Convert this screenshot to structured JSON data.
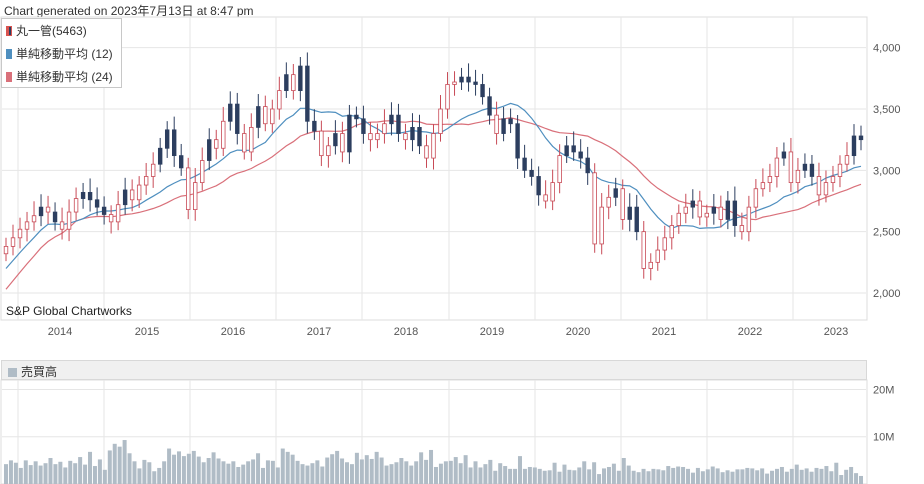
{
  "header": {
    "generated": "Chart generated on 2023年7月13日 at 8:47 pm"
  },
  "legend": {
    "items": [
      {
        "label": "丸一管(5463)",
        "color": "#2c3e5f",
        "border": "#d9534f"
      },
      {
        "label": "単純移動平均 (12)",
        "color": "#4f8fbf"
      },
      {
        "label": "単純移動平均 (24)",
        "color": "#d9707a"
      }
    ]
  },
  "watermark": "S&P Global Chartworks",
  "volume_panel": {
    "label": "売買高"
  },
  "colors": {
    "up": "#ffffff",
    "up_border": "#c84a56",
    "down": "#2c3e5f",
    "sma12": "#4f8fbf",
    "sma24": "#d9707a",
    "volume": "#b0bcc6",
    "grid": "#e6e6e6"
  },
  "chart_data": [
    {
      "type": "candlestick",
      "title": "丸一管(5463)",
      "x_tick_labels": [
        "2014",
        "2015",
        "2016",
        "2017",
        "2018",
        "2019",
        "2020",
        "2021",
        "2022",
        "2023"
      ],
      "y_tick_labels": [
        "2,000",
        "2,500",
        "3,000",
        "3,500",
        "4,000"
      ],
      "ylim": [
        1780,
        4250
      ],
      "grid": true,
      "series": [
        {
          "name": "丸一管(5463)",
          "kind": "candles",
          "close": [
            2380,
            2450,
            2520,
            2580,
            2630,
            2700,
            2660,
            2580,
            2520,
            2660,
            2770,
            2820,
            2760,
            2700,
            2640,
            2580,
            2720,
            2840,
            2760,
            2880,
            2950,
            3050,
            3180,
            3330,
            3120,
            3020,
            2680,
            2900,
            3080,
            3250,
            3180,
            3400,
            3540,
            3300,
            3150,
            3350,
            3520,
            3380,
            3500,
            3650,
            3780,
            3650,
            3850,
            3400,
            3320,
            3120,
            3200,
            3300,
            3150,
            3450,
            3420,
            3300,
            3250,
            3300,
            3380,
            3450,
            3300,
            3250,
            3350,
            3200,
            3100,
            3300,
            3500,
            3700,
            3720,
            3760,
            3720,
            3700,
            3600,
            3450,
            3300,
            3420,
            3380,
            3100,
            3000,
            2950,
            2800,
            2750,
            2900,
            3120,
            3200,
            3150,
            3100,
            2980,
            2400,
            2700,
            2780,
            2850,
            2600,
            2700,
            2500,
            2200,
            2250,
            2350,
            2450,
            2550,
            2650,
            2700,
            2750,
            2620,
            2650,
            2700,
            2600,
            2750,
            2550,
            2500,
            2700,
            2850,
            2900,
            2950,
            3100,
            3150,
            2900,
            3000,
            3050,
            2950,
            2800,
            2900,
            2950,
            3050,
            3120,
            3280,
            3250
          ],
          "up": [
            true,
            true,
            true,
            true,
            true,
            false,
            true,
            false,
            true,
            true,
            true,
            false,
            false,
            false,
            false,
            true,
            true,
            false,
            true,
            true,
            true,
            true,
            false,
            false,
            false,
            false,
            true,
            true,
            true,
            false,
            true,
            true,
            false,
            false,
            true,
            true,
            false,
            true,
            true,
            true,
            false,
            true,
            false,
            false,
            false,
            true,
            true,
            false,
            true,
            false,
            false,
            false,
            true,
            true,
            true,
            false,
            false,
            true,
            false,
            false,
            true,
            true,
            true,
            true,
            true,
            false,
            false,
            false,
            false,
            false,
            true,
            false,
            false,
            false,
            false,
            false,
            false,
            true,
            true,
            true,
            false,
            false,
            false,
            false,
            true,
            true,
            true,
            false,
            true,
            false,
            false,
            true,
            true,
            true,
            true,
            true,
            true,
            true,
            false,
            true,
            true,
            false,
            true,
            false,
            false,
            true,
            true,
            true,
            true,
            true,
            true,
            false,
            true,
            true,
            false,
            false,
            true,
            true,
            true,
            true,
            true,
            false,
            false
          ]
        },
        {
          "name": "単純移動平均 (12)",
          "kind": "line"
        },
        {
          "name": "単純移動平均 (24)",
          "kind": "line"
        }
      ]
    },
    {
      "type": "bar",
      "title": "売買高",
      "y_tick_labels": [
        "10M",
        "20M"
      ],
      "ylim": [
        0,
        22000000
      ],
      "values": [
        4.2,
        5.0,
        4.5,
        3.4,
        5.0,
        4.0,
        4.8,
        3.9,
        4.4,
        5.5,
        4.2,
        4.7,
        3.5,
        4.9,
        4.4,
        5.7,
        4.1,
        6.8,
        3.8,
        5.2,
        3.0,
        7.1,
        8.5,
        7.9,
        9.3,
        6.5,
        4.8,
        3.3,
        5.1,
        4.6,
        2.7,
        3.4,
        4.8,
        7.5,
        6.2,
        6.9,
        5.9,
        6.4,
        7.0,
        5.8,
        4.6,
        5.5,
        6.7,
        5.4,
        4.8,
        4.3,
        4.8,
        3.6,
        4.1,
        4.8,
        5.2,
        6.5,
        3.4,
        5.0,
        4.9,
        3.5,
        7.5,
        6.8,
        6.2,
        4.9,
        4.2,
        3.9,
        4.4,
        5.0,
        3.7,
        5.6,
        6.3,
        7.0,
        5.4,
        4.6,
        4.2,
        6.6,
        5.2,
        6.1,
        5.3,
        6.8,
        5.6,
        3.9,
        4.2,
        4.6,
        5.5,
        4.8,
        3.9,
        4.8,
        6.7,
        5.1,
        7.2,
        3.6,
        4.3,
        4.8,
        4.9,
        5.7,
        4.4,
        6.1,
        3.5,
        4.8,
        3.5,
        4.2,
        5.1,
        2.8,
        4.4,
        3.8,
        3.2,
        3.2,
        5.9,
        3.2,
        3.6,
        3.5,
        3.2,
        2.8,
        2.9,
        4.5,
        2.6,
        4.1,
        3.0,
        2.9,
        3.5,
        4.8,
        3.1,
        4.6,
        2.1,
        3.3,
        3.6,
        4.3,
        2.8,
        5.5,
        3.9,
        2.8,
        2.5,
        3.2,
        2.7,
        3.2,
        3.1,
        2.9,
        3.8,
        3.4,
        3.7,
        3.6,
        3.2,
        2.4,
        3.4,
        2.7,
        3.1,
        3.7,
        3.3,
        2.5,
        2.9,
        2.6,
        3.1,
        3.1,
        3.4,
        3.3,
        2.9,
        3.3,
        2.2,
        2.8,
        3.2,
        3.6,
        2.6,
        3.2,
        4.1,
        3.0,
        3.3,
        2.6,
        3.4,
        3.2,
        3.8,
        2.7,
        4.5,
        1.9,
        3.0,
        3.6,
        2.3,
        1.7
      ],
      "units": "M"
    }
  ]
}
